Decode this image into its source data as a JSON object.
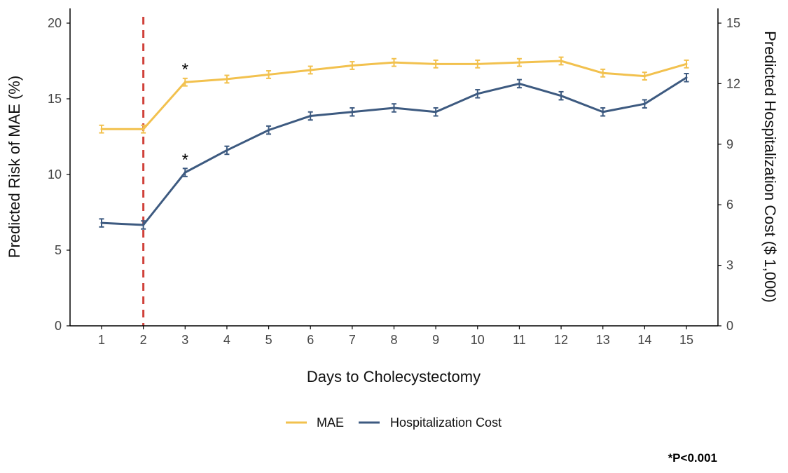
{
  "chart_data": {
    "type": "line",
    "xlabel": "Days to Cholecystectomy",
    "ylabel_left": "Predicted Risk of MAE (%)",
    "ylabel_right": "Predicted Hospitalization Cost ($ 1,000)",
    "categories": [
      "1",
      "2",
      "3",
      "4",
      "5",
      "6",
      "7",
      "8",
      "9",
      "10",
      "11",
      "12",
      "13",
      "14",
      "15"
    ],
    "ylim_left": [
      0,
      20
    ],
    "yticks_left": [
      "0",
      "5",
      "10",
      "15",
      "20"
    ],
    "ylim_right": [
      0,
      15
    ],
    "yticks_right": [
      "0",
      "3",
      "6",
      "9",
      "12",
      "15"
    ],
    "series": [
      {
        "name": "MAE",
        "axis": "left",
        "color": "#F2C14E",
        "values": [
          13.0,
          13.0,
          16.1,
          16.3,
          16.6,
          16.9,
          17.2,
          17.4,
          17.3,
          17.3,
          17.4,
          17.5,
          16.7,
          16.5,
          17.3
        ],
        "error": 0.25
      },
      {
        "name": "Hospitalization Cost",
        "axis": "right",
        "color": "#3D5A80",
        "values": [
          5.1,
          5.0,
          7.6,
          8.7,
          9.7,
          10.4,
          10.6,
          10.8,
          10.6,
          11.5,
          12.0,
          11.4,
          10.6,
          11.0,
          12.3
        ],
        "error": 0.2
      }
    ],
    "reference_line": {
      "x": "2",
      "color": "#D0413A",
      "style": "dashed"
    },
    "annotations": [
      {
        "text": "*",
        "x": "3",
        "series": "MAE"
      },
      {
        "text": "*",
        "x": "3",
        "series": "Hospitalization Cost"
      }
    ],
    "legend": {
      "position": "bottom",
      "items": [
        "MAE",
        "Hospitalization Cost"
      ]
    },
    "footnote": "*P<0.001"
  }
}
